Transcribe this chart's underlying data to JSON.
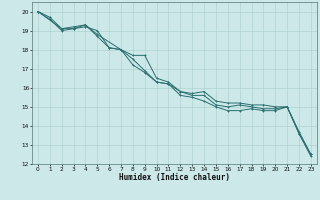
{
  "xlabel": "Humidex (Indice chaleur)",
  "xlim": [
    -0.5,
    23.5
  ],
  "ylim": [
    12,
    20.5
  ],
  "xticks": [
    0,
    1,
    2,
    3,
    4,
    5,
    6,
    7,
    8,
    9,
    10,
    11,
    12,
    13,
    14,
    15,
    16,
    17,
    18,
    19,
    20,
    21,
    22,
    23
  ],
  "yticks": [
    12,
    13,
    14,
    15,
    16,
    17,
    18,
    19,
    20
  ],
  "bg_color": "#cce8e8",
  "grid_color": "#aacccc",
  "line_color": "#2a6e6e",
  "series1_x": [
    0,
    1,
    2,
    3,
    4,
    5,
    6,
    7,
    8,
    9,
    10,
    11,
    12,
    13,
    14,
    15,
    16,
    17,
    18,
    19,
    20,
    21,
    22,
    23
  ],
  "series1_y": [
    20.0,
    19.7,
    19.1,
    19.1,
    19.2,
    19.0,
    18.1,
    18.0,
    17.5,
    16.9,
    16.3,
    16.2,
    15.8,
    15.6,
    15.6,
    15.1,
    15.0,
    15.1,
    15.0,
    14.9,
    14.9,
    15.0,
    13.6,
    12.5
  ],
  "series2_x": [
    0,
    2,
    3,
    4,
    5,
    7,
    8,
    9,
    10,
    11,
    12,
    13,
    14,
    15,
    16,
    17,
    18,
    19,
    20,
    21,
    22,
    23
  ],
  "series2_y": [
    20.0,
    19.1,
    19.2,
    19.3,
    18.8,
    18.0,
    17.7,
    17.7,
    16.5,
    16.3,
    15.8,
    15.7,
    15.8,
    15.3,
    15.2,
    15.2,
    15.1,
    15.1,
    15.0,
    15.0,
    13.7,
    12.5
  ],
  "series3_x": [
    0,
    1,
    2,
    3,
    4,
    5,
    6,
    7,
    8,
    9,
    10,
    11,
    12,
    13,
    14,
    15,
    16,
    17,
    18,
    19,
    20,
    21,
    22,
    23
  ],
  "series3_y": [
    20.0,
    19.6,
    19.0,
    19.1,
    19.3,
    18.7,
    18.1,
    18.0,
    17.2,
    16.8,
    16.3,
    16.2,
    15.6,
    15.5,
    15.3,
    15.0,
    14.8,
    14.8,
    14.9,
    14.8,
    14.8,
    15.0,
    13.6,
    12.4
  ],
  "label_fontsize": 5,
  "xlabel_fontsize": 5.5,
  "tick_fontsize": 4.2,
  "lw": 0.7,
  "marker_size": 2.0
}
